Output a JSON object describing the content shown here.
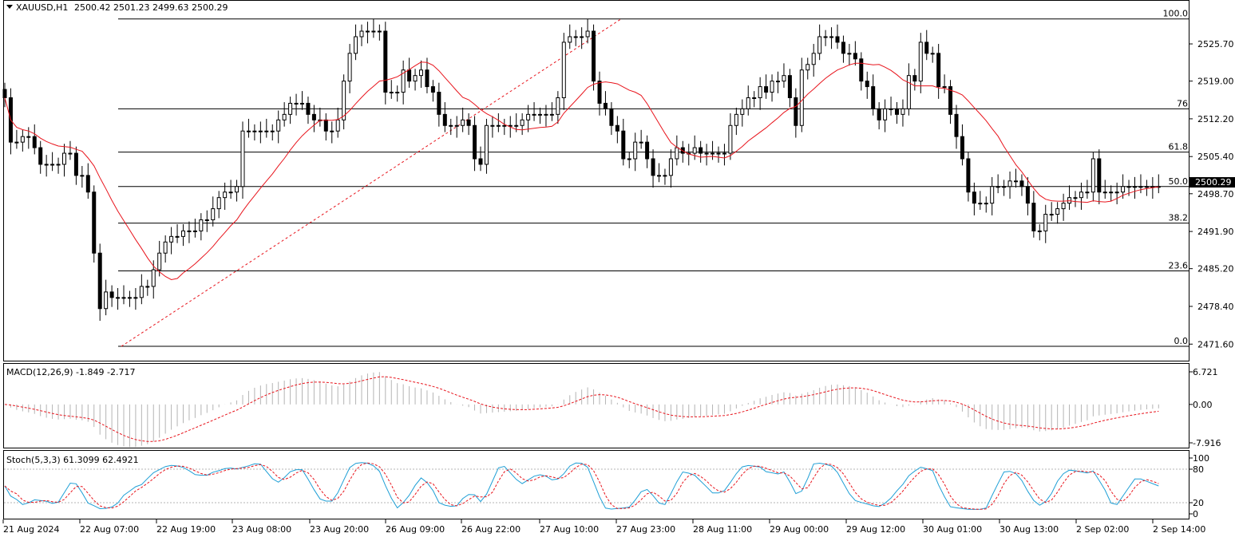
{
  "header": {
    "symbol": "XAUUSD,H1",
    "ohlc": "2500.42 2501.23 2499.63 2500.29"
  },
  "price_pane": {
    "price_ticks": [
      "2525.70",
      "2519.00",
      "2512.20",
      "2505.40",
      "2498.70",
      "2491.90",
      "2485.20",
      "2478.40",
      "2471.60"
    ],
    "current_price_label": "2500.29",
    "fib_levels": [
      {
        "label": "100.0",
        "price": 2530.2
      },
      {
        "label": "76",
        "price": 2514.0
      },
      {
        "label": "61.8",
        "price": 2506.2
      },
      {
        "label": "50.0",
        "price": 2500.0
      },
      {
        "label": "38.2",
        "price": 2493.4
      },
      {
        "label": "23.6",
        "price": 2484.8
      },
      {
        "label": "0.0",
        "price": 2471.2
      }
    ]
  },
  "macd_pane": {
    "label": "MACD(12,26,9) -1.849 -2.717",
    "ticks": [
      "6.721",
      "0.00",
      "-7.916"
    ]
  },
  "stoch_pane": {
    "label": "Stoch(5,3,3) 61.3099 62.4921",
    "ticks": [
      "100",
      "80",
      "20",
      "0"
    ]
  },
  "time_axis": {
    "labels": [
      "21 Aug 2024",
      "22 Aug 07:00",
      "22 Aug 19:00",
      "23 Aug 08:00",
      "23 Aug 20:00",
      "26 Aug 09:00",
      "26 Aug 22:00",
      "27 Aug 10:00",
      "27 Aug 23:00",
      "28 Aug 11:00",
      "29 Aug 00:00",
      "29 Aug 12:00",
      "30 Aug 01:00",
      "30 Aug 13:00",
      "2 Sep 02:00",
      "2 Sep 14:00"
    ]
  },
  "colors": {
    "background": "#ffffff",
    "grid_line": "#000000",
    "bull_candle": "#ffffff",
    "bear_candle": "#000000",
    "ma_line": "#e8141c",
    "trend_line": "#e8141c",
    "macd_hist": "#b4b4b4",
    "signal_line": "#e8141c",
    "stoch_main": "#1e9fd6",
    "stoch_signal": "#e8141c"
  },
  "chart_data": {
    "type": "candlestick",
    "title": "XAUUSD,H1",
    "ylim": [
      2470.2,
      2531.6
    ],
    "overlays": [
      "moving-average",
      "fibonacci-retracement",
      "trend-line"
    ],
    "candle_closes": [
      2516,
      2508,
      2508,
      2509,
      2509,
      2507,
      2504,
      2504,
      2504,
      2504,
      2506,
      2506,
      2502,
      2502,
      2499,
      2488,
      2478,
      2481,
      2480,
      2480,
      2480,
      2480,
      2480,
      2482,
      2482,
      2485,
      2488,
      2490,
      2491,
      2491,
      2492,
      2492,
      2492,
      2494,
      2494,
      2496,
      2498,
      2499,
      2499,
      2500,
      2510,
      2510,
      2510,
      2510,
      2510,
      2510,
      2512,
      2513,
      2515,
      2515,
      2515,
      2513,
      2512,
      2512,
      2510,
      2510,
      2512,
      2519,
      2524,
      2527,
      2528,
      2528,
      2528,
      2528,
      2517,
      2517,
      2517,
      2521,
      2519,
      2520,
      2521,
      2518,
      2517,
      2513,
      2511,
      2511,
      2511,
      2512,
      2511,
      2505,
      2504,
      2511,
      2511,
      2511,
      2511,
      2511,
      2511,
      2512,
      2513,
      2513,
      2513,
      2513,
      2513,
      2516,
      2526,
      2527,
      2527,
      2527,
      2528,
      2519,
      2515,
      2514,
      2511,
      2510,
      2505,
      2505,
      2508,
      2508,
      2505,
      2502,
      2502,
      2502,
      2505,
      2507,
      2506,
      2506,
      2507,
      2506,
      2506,
      2506,
      2506,
      2506,
      2511,
      2513,
      2514,
      2516,
      2516,
      2518,
      2517,
      2519,
      2519,
      2520,
      2516,
      2511,
      2521,
      2522,
      2524,
      2527,
      2527,
      2527,
      2526,
      2524,
      2524,
      2523,
      2519,
      2518,
      2514,
      2512,
      2514,
      2514,
      2513,
      2514,
      2520,
      2519,
      2526,
      2524,
      2524,
      2518,
      2518,
      2513,
      2509,
      2505,
      2499,
      2497,
      2497,
      2497,
      2500,
      2500,
      2500,
      2501,
      2501,
      2500,
      2497,
      2492,
      2492,
      2495,
      2495,
      2496,
      2497,
      2498,
      2498,
      2499,
      2499,
      2505,
      2499,
      2499,
      2499,
      2499,
      2500,
      2500,
      2500,
      2500,
      2500,
      2500,
      2500
    ]
  }
}
